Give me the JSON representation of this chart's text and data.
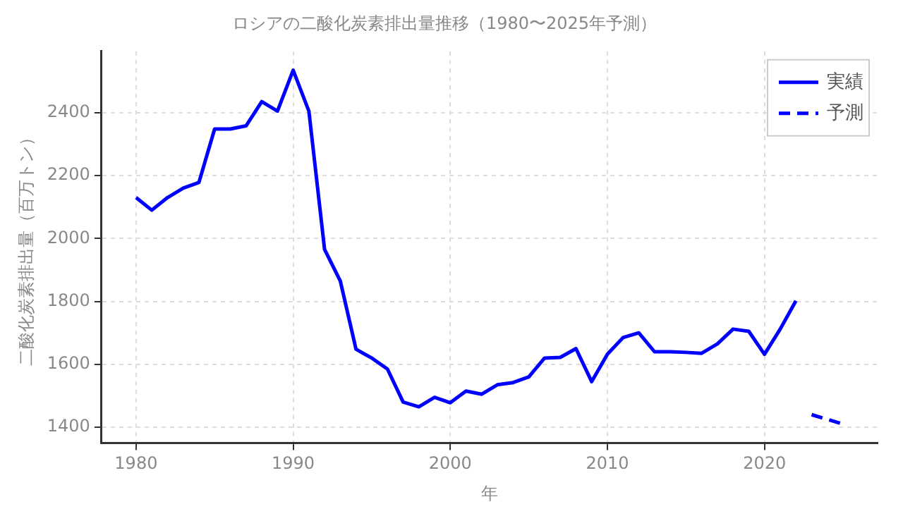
{
  "chart_data": {
    "type": "line",
    "title": "ロシアの二酸化炭素排出量推移（1980〜2025年予測）",
    "xlabel": "年",
    "ylabel": "二酸化炭素排出量（百万トン）",
    "xlim": [
      1977.8,
      2027.2
    ],
    "xticks": [
      1980,
      1990,
      2000,
      2010,
      2020
    ],
    "ylim": [
      1350,
      2595
    ],
    "yticks": [
      1400,
      1600,
      1800,
      2000,
      2200,
      2400
    ],
    "grid": true,
    "legend": "top right",
    "marker": "none",
    "series": [
      {
        "name": "実績",
        "color": "#0000ff",
        "line_style": "solid",
        "x": [
          1980,
          1981,
          1982,
          1983,
          1984,
          1985,
          1986,
          1987,
          1988,
          1989,
          1990,
          1991,
          1992,
          1993,
          1994,
          1995,
          1996,
          1997,
          1998,
          1999,
          2000,
          2001,
          2002,
          2003,
          2004,
          2005,
          2006,
          2007,
          2008,
          2009,
          2010,
          2011,
          2012,
          2013,
          2014,
          2015,
          2016,
          2017,
          2018,
          2019,
          2020,
          2021,
          2022
        ],
        "values": [
          2130,
          2090,
          2130,
          2160,
          2178,
          2348,
          2348,
          2358,
          2435,
          2405,
          2535,
          2405,
          1965,
          1865,
          1648,
          1620,
          1585,
          1480,
          1465,
          1495,
          1478,
          1515,
          1505,
          1535,
          1542,
          1560,
          1620,
          1622,
          1650,
          1545,
          1632,
          1685,
          1700,
          1640,
          1640,
          1638,
          1635,
          1665,
          1712,
          1705,
          1632,
          1712,
          1802
        ]
      },
      {
        "name": "予測",
        "color": "#0000ff",
        "line_style": "dashed",
        "x": [
          2023,
          2024,
          2025
        ],
        "values": [
          1440,
          1425,
          1410
        ]
      }
    ]
  }
}
